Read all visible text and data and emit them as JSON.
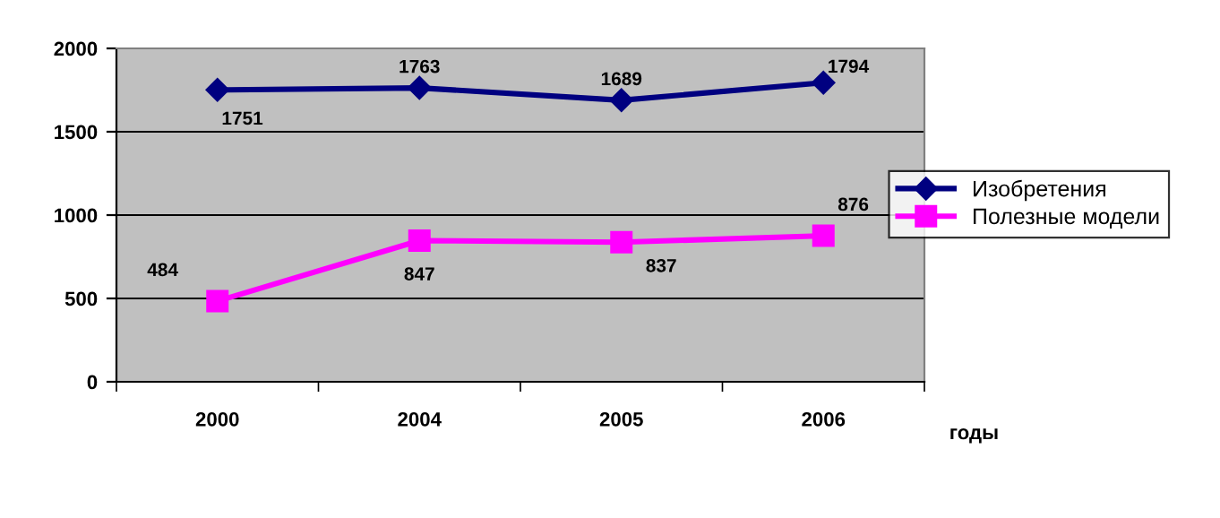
{
  "chart_data": {
    "type": "line",
    "xlabel": "годы",
    "categories": [
      "2000",
      "2004",
      "2005",
      "2006"
    ],
    "series": [
      {
        "name": "Изобретения",
        "color": "#000080",
        "marker": "diamond",
        "values": [
          1751,
          1763,
          1689,
          1794
        ]
      },
      {
        "name": "Полезные модели",
        "color": "#ff00ff",
        "marker": "square",
        "values": [
          484,
          847,
          837,
          876
        ]
      }
    ],
    "ylim": [
      0,
      2000
    ],
    "yticks": [
      0,
      500,
      1000,
      1500,
      2000
    ],
    "grid": "y",
    "legend": "right",
    "data_labels": true
  }
}
